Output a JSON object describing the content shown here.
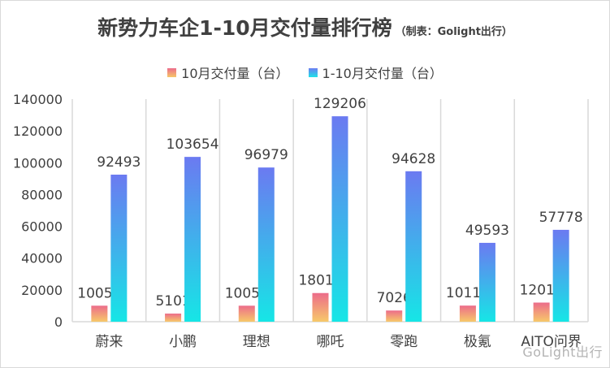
{
  "chart_data": {
    "type": "bar",
    "title": "新势力车企1-10月交付量排行榜",
    "subtitle": "（制表：Golight出行）",
    "categories": [
      "蔚来",
      "小鹏",
      "理想",
      "哪吒",
      "零跑",
      "极氪",
      "AITO问界"
    ],
    "series": [
      {
        "name": "10月交付量（台）",
        "values": [
          10059,
          5101,
          10052,
          18016,
          7026,
          10119,
          12018
        ],
        "color": "#f39a74"
      },
      {
        "name": "1-10月交付量（台）",
        "values": [
          92493,
          103654,
          96979,
          129206,
          94628,
          49593,
          57778
        ],
        "color": "#4aa3f0"
      }
    ],
    "ylim": [
      0,
      140000
    ],
    "yticks": [
      "0",
      "20000",
      "40000",
      "60000",
      "80000",
      "100000",
      "120000",
      "140000"
    ],
    "grid": "vertical",
    "legend": "top-center"
  },
  "watermark": "GoLight出行"
}
